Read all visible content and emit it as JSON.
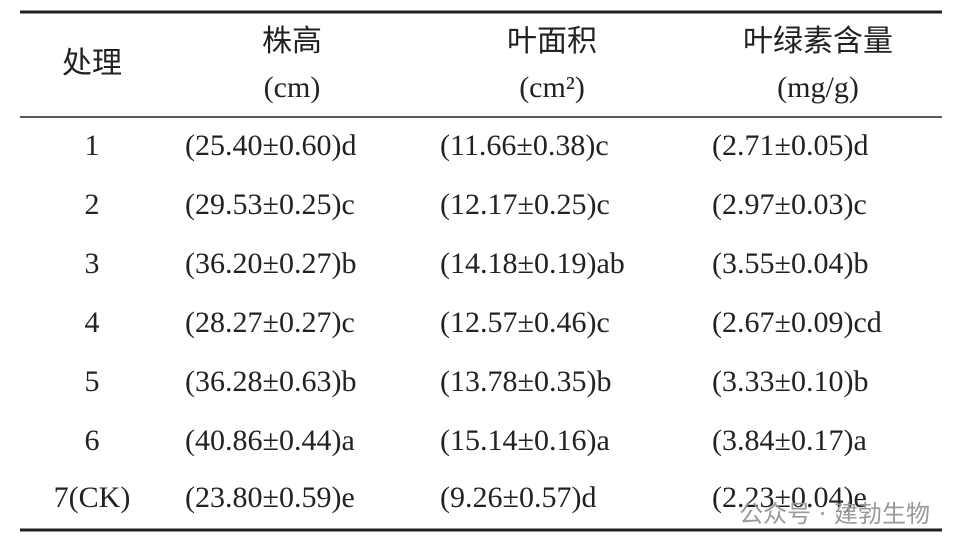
{
  "table": {
    "header": {
      "columns": [
        {
          "name": "处理"
        },
        {
          "name": "株高",
          "unit": "(cm)"
        },
        {
          "name": "叶面积",
          "unit": "(cm²)"
        },
        {
          "name": "叶绿素含量",
          "unit": "(mg/g)"
        }
      ]
    },
    "rows": [
      [
        "1",
        "(25.40±0.60)d",
        "(11.66±0.38)c",
        "(2.71±0.05)d"
      ],
      [
        "2",
        "(29.53±0.25)c",
        "(12.17±0.25)c",
        "(2.97±0.03)c"
      ],
      [
        "3",
        "(36.20±0.27)b",
        "(14.18±0.19)ab",
        "(3.55±0.04)b"
      ],
      [
        "4",
        "(28.27±0.27)c",
        "(12.57±0.46)c",
        "(2.67±0.09)cd"
      ],
      [
        "5",
        "(36.28±0.63)b",
        "(13.78±0.35)b",
        "(3.33±0.10)b"
      ],
      [
        "6",
        "(40.86±0.44)a",
        "(15.14±0.16)a",
        "(3.84±0.17)a"
      ],
      [
        "7(CK)",
        "(23.80±0.59)e",
        "(9.26±0.57)d",
        "(2.23±0.04)e"
      ]
    ]
  },
  "watermark": "公众号 · 建勃生物"
}
